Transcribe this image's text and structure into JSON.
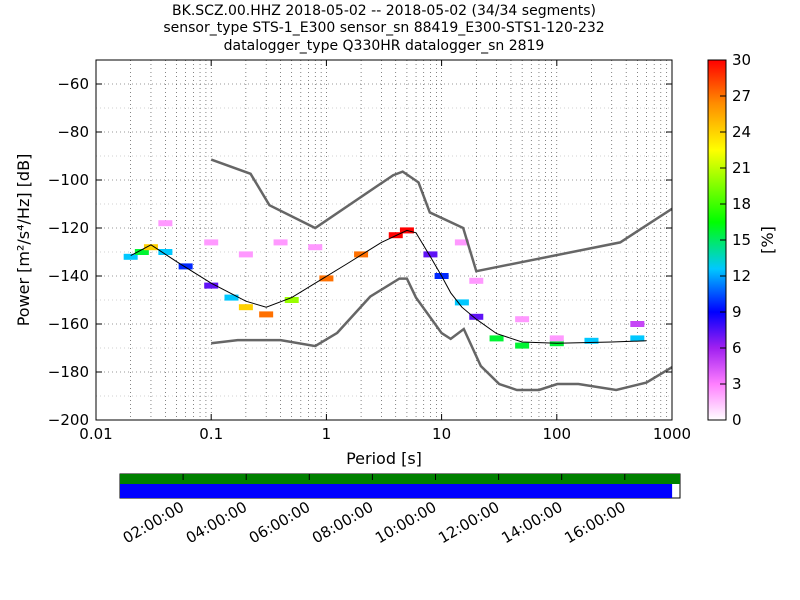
{
  "title": {
    "line1": "BK.SCZ.00.HHZ   2018-05-02 -- 2018-05-02  (34/34 segments)",
    "line2": "sensor_type STS-1_E300 sensor_sn 88419_E300-STS1-120-232",
    "line3": "datalogger_type Q330HR datalogger_sn 2819"
  },
  "chart_data": {
    "type": "heatmap",
    "xlabel": "Period [s]",
    "ylabel": "Power [m²/s⁴/Hz] [dB]",
    "xscale": "log",
    "xlim": [
      0.01,
      1000
    ],
    "ylim": [
      -200,
      -50
    ],
    "grid": true,
    "x_ticks": [
      {
        "value": 0.01,
        "label": "0.01"
      },
      {
        "value": 0.1,
        "label": "0.1"
      },
      {
        "value": 1,
        "label": "1"
      },
      {
        "value": 10,
        "label": "10"
      },
      {
        "value": 100,
        "label": "100"
      },
      {
        "value": 1000,
        "label": "1000"
      }
    ],
    "y_ticks": [
      {
        "value": -60,
        "label": "−60"
      },
      {
        "value": -80,
        "label": "−80"
      },
      {
        "value": -100,
        "label": "−100"
      },
      {
        "value": -120,
        "label": "−120"
      },
      {
        "value": -140,
        "label": "−140"
      },
      {
        "value": -160,
        "label": "−160"
      },
      {
        "value": -180,
        "label": "−180"
      },
      {
        "value": -200,
        "label": "−200"
      }
    ],
    "colorbar": {
      "label": "[%]",
      "range": [
        0,
        30
      ],
      "ticks": [
        "0",
        "3",
        "6",
        "9",
        "12",
        "15",
        "18",
        "21",
        "24",
        "27",
        "30"
      ],
      "colors": [
        "#ffffff",
        "#ff7fff",
        "#a020f0",
        "#0000ff",
        "#00c8ff",
        "#00ff00",
        "#ffff00",
        "#ff8c00",
        "#ff0000"
      ]
    },
    "noise_models": [
      {
        "name": "NHNM",
        "points": [
          [
            0.1,
            -91.5
          ],
          [
            0.22,
            -97.4
          ],
          [
            0.32,
            -110.5
          ],
          [
            0.8,
            -120
          ],
          [
            3.8,
            -98
          ],
          [
            4.6,
            -96.5
          ],
          [
            6.3,
            -101
          ],
          [
            7.9,
            -113.5
          ],
          [
            15.4,
            -120
          ],
          [
            20,
            -138
          ],
          [
            354.8,
            -126
          ],
          [
            1000,
            -112
          ]
        ]
      },
      {
        "name": "NLNM",
        "points": [
          [
            0.1,
            -168
          ],
          [
            0.17,
            -166.7
          ],
          [
            0.4,
            -166.7
          ],
          [
            0.8,
            -169.2
          ],
          [
            1.24,
            -163.7
          ],
          [
            2.4,
            -148.6
          ],
          [
            4.3,
            -141.1
          ],
          [
            5,
            -141.1
          ],
          [
            6,
            -149
          ],
          [
            10,
            -163.8
          ],
          [
            12,
            -166.2
          ],
          [
            15.6,
            -162.1
          ],
          [
            21.9,
            -177.5
          ],
          [
            31.6,
            -185
          ],
          [
            45,
            -187.5
          ],
          [
            70,
            -187.5
          ],
          [
            101,
            -185
          ],
          [
            154,
            -185
          ],
          [
            328,
            -187.5
          ],
          [
            600,
            -184.4
          ],
          [
            1000,
            -178
          ]
        ]
      }
    ],
    "mode_curve": [
      [
        0.02,
        -131.5
      ],
      [
        0.03,
        -127
      ],
      [
        0.05,
        -134
      ],
      [
        0.1,
        -143
      ],
      [
        0.2,
        -150.5
      ],
      [
        0.3,
        -153
      ],
      [
        0.5,
        -149
      ],
      [
        0.8,
        -143
      ],
      [
        1.5,
        -135
      ],
      [
        3,
        -126
      ],
      [
        5,
        -121
      ],
      [
        6,
        -122
      ],
      [
        8,
        -132
      ],
      [
        10,
        -140
      ],
      [
        12,
        -147
      ],
      [
        15,
        -153
      ],
      [
        20,
        -158
      ],
      [
        30,
        -164
      ],
      [
        50,
        -167.5
      ],
      [
        100,
        -168
      ],
      [
        300,
        -167.5
      ],
      [
        600,
        -167
      ]
    ],
    "ppsd_cells": [
      {
        "period": 0.02,
        "power": -132,
        "percent": 15
      },
      {
        "period": 0.025,
        "power": -130,
        "percent": 18
      },
      {
        "period": 0.03,
        "power": -128,
        "percent": 24
      },
      {
        "period": 0.04,
        "power": -130,
        "percent": 15
      },
      {
        "period": 0.06,
        "power": -136,
        "percent": 12
      },
      {
        "period": 0.1,
        "power": -144,
        "percent": 9
      },
      {
        "period": 0.15,
        "power": -149,
        "percent": 15
      },
      {
        "period": 0.2,
        "power": -153,
        "percent": 24
      },
      {
        "period": 0.3,
        "power": -156,
        "percent": 27
      },
      {
        "period": 0.5,
        "power": -150,
        "percent": 21
      },
      {
        "period": 1,
        "power": -141,
        "percent": 27
      },
      {
        "period": 2,
        "power": -131,
        "percent": 27
      },
      {
        "period": 4,
        "power": -123,
        "percent": 30
      },
      {
        "period": 5,
        "power": -121,
        "percent": 30
      },
      {
        "period": 8,
        "power": -131,
        "percent": 9
      },
      {
        "period": 10,
        "power": -140,
        "percent": 12
      },
      {
        "period": 15,
        "power": -151,
        "percent": 15
      },
      {
        "period": 20,
        "power": -157,
        "percent": 9
      },
      {
        "period": 30,
        "power": -166,
        "percent": 18
      },
      {
        "period": 50,
        "power": -169,
        "percent": 18
      },
      {
        "period": 100,
        "power": -168,
        "percent": 18
      },
      {
        "period": 200,
        "power": -167,
        "percent": 15
      },
      {
        "period": 500,
        "power": -166,
        "percent": 15
      },
      {
        "period": 0.04,
        "power": -118,
        "percent": 3
      },
      {
        "period": 0.1,
        "power": -126,
        "percent": 3
      },
      {
        "period": 0.2,
        "power": -131,
        "percent": 3
      },
      {
        "period": 0.4,
        "power": -126,
        "percent": 3
      },
      {
        "period": 0.8,
        "power": -128,
        "percent": 3
      },
      {
        "period": 15,
        "power": -126,
        "percent": 3
      },
      {
        "period": 20,
        "power": -142,
        "percent": 3
      },
      {
        "period": 50,
        "power": -158,
        "percent": 3
      },
      {
        "period": 100,
        "power": -166,
        "percent": 3
      },
      {
        "period": 500,
        "power": -160,
        "percent": 6
      }
    ],
    "timeline": {
      "labels": [
        "02:00:00",
        "04:00:00",
        "06:00:00",
        "08:00:00",
        "10:00:00",
        "12:00:00",
        "14:00:00",
        "16:00:00"
      ],
      "label_hours": [
        2,
        4,
        6,
        8,
        10,
        12,
        14,
        16
      ],
      "hours_range": [
        0,
        17.75
      ],
      "data_coverage_hours": [
        [
          0,
          17.75
        ]
      ],
      "processed_coverage_hours": [
        [
          0,
          17.5
        ]
      ]
    }
  }
}
